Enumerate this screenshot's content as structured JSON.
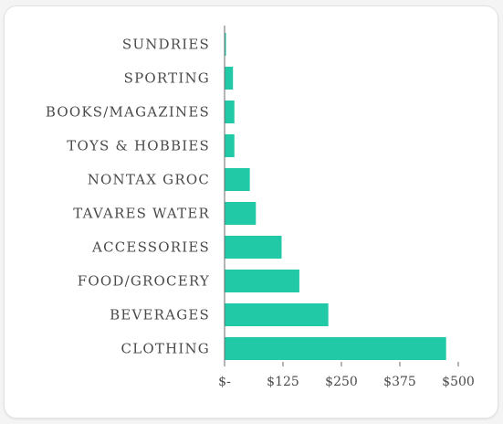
{
  "chart_data": {
    "type": "bar",
    "orientation": "horizontal",
    "categories": [
      "SUNDRIES",
      "SPORTING",
      "BOOKS/MAGAZINES",
      "TOYS & HOBBIES",
      "NONTAX GROC",
      "TAVARES WATER",
      "ACCESSORIES",
      "FOOD/GROCERY",
      "BEVERAGES",
      "CLOTHING"
    ],
    "values": [
      3,
      18,
      21,
      21,
      54,
      67,
      122,
      160,
      222,
      474
    ],
    "xlim": [
      0,
      500
    ],
    "x_ticks": [
      0,
      125,
      250,
      375,
      500
    ],
    "x_tick_labels": [
      "$-",
      "$125",
      "$250",
      "$375",
      "$500"
    ],
    "grid": false,
    "bar_color": "#22c9a6",
    "axis_color": "#6a6a6a"
  }
}
